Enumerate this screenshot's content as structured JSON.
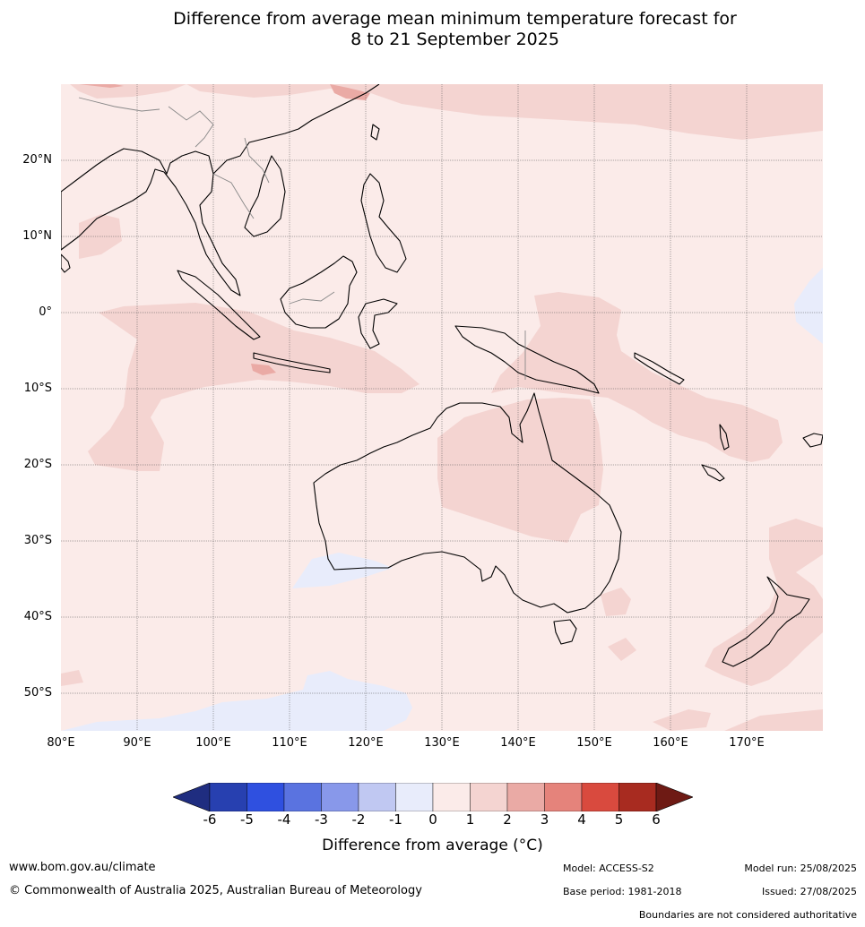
{
  "title": {
    "line1": "Difference from average mean minimum temperature forecast for",
    "line2": "8 to 21 September 2025"
  },
  "map": {
    "latitude_labels": [
      "20°N",
      "10°N",
      "0°",
      "10°S",
      "20°S",
      "30°S",
      "40°S",
      "50°S"
    ],
    "longitude_labels": [
      "80°E",
      "90°E",
      "100°E",
      "110°E",
      "120°E",
      "130°E",
      "140°E",
      "150°E",
      "160°E",
      "170°E"
    ],
    "lat_values": [
      20,
      10,
      0,
      -10,
      -20,
      -30,
      -40,
      -50
    ],
    "lon_values": [
      80,
      90,
      100,
      110,
      120,
      130,
      140,
      150,
      160,
      170
    ],
    "extent": {
      "lon_min": 80,
      "lon_max": 180,
      "lat_min": -55,
      "lat_max": 30
    },
    "background_anomaly_class": "0 to 1"
  },
  "colorbar": {
    "tick_labels": [
      "-6",
      "-5",
      "-4",
      "-3",
      "-2",
      "-1",
      "0",
      "1",
      "2",
      "3",
      "4",
      "5",
      "6"
    ],
    "colors": [
      "#1f2d80",
      "#2740b0",
      "#2f50e0",
      "#5a73e0",
      "#8898ea",
      "#c0c8f2",
      "#e8ecfb",
      "#fbebe9",
      "#f4d4d1",
      "#eaaaa5",
      "#e5837b",
      "#d94a3e",
      "#a82b20",
      "#6e1a14"
    ],
    "label": "Difference from average (°C)"
  },
  "footer": {
    "website": "www.bom.gov.au/climate",
    "copyright": "© Commonwealth of Australia 2025, Australian Bureau of Meteorology",
    "model": "Model: ACCESS-S2",
    "base_period": "Base period: 1981-2018",
    "model_run": "Model run: 25/08/2025",
    "issued": "Issued: 27/08/2025",
    "disclaimer": "Boundaries are not considered authoritative"
  }
}
